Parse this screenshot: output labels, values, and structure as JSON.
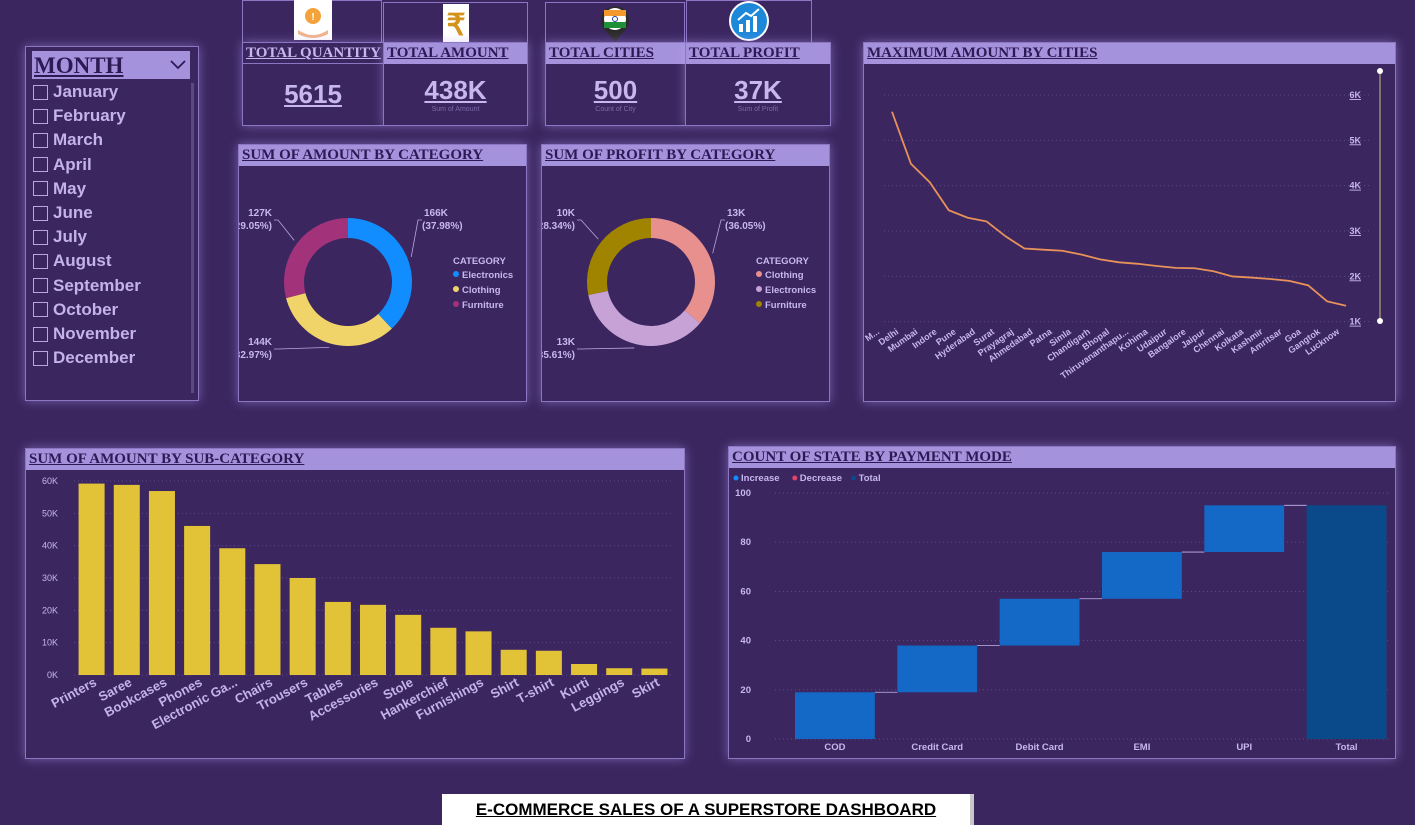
{
  "month_slicer": {
    "title": "MONTH",
    "items": [
      "January",
      "February",
      "March",
      "April",
      "May",
      "June",
      "July",
      "August",
      "September",
      "October",
      "November",
      "December"
    ]
  },
  "kpis": {
    "quantity": {
      "label": "TOTAL QUANTITY",
      "value": "5615",
      "icon": "hand-coin-icon"
    },
    "amount": {
      "label": "TOTAL AMOUNT",
      "value": "438K",
      "sub": "Sum of Amount",
      "icon": "rupee-icon"
    },
    "cities": {
      "label": "TOTAL CITIES",
      "value": "500",
      "sub": "Count of City",
      "icon": "india-map-pin-icon"
    },
    "profit": {
      "label": "TOTAL PROFIT",
      "value": "37K",
      "sub": "Sum of Profit",
      "icon": "growth-chart-icon"
    }
  },
  "footer": {
    "title": "E-COMMERCE SALES OF A SUPERSTORE DASHBOARD"
  },
  "colors": {
    "background": "#3b2660",
    "header": "#a592dc",
    "bar_yellow": "#e2c236",
    "line_orange": "#e8925a",
    "increase_blue": "#1569c6",
    "total_navy": "#0b4a8a"
  },
  "chart_data": [
    {
      "id": "amount_by_category",
      "type": "pie",
      "title": "SUM OF AMOUNT BY CATEGORY",
      "legend_title": "CATEGORY",
      "legend_position": "right",
      "slices": [
        {
          "label": "Electronics",
          "value": 166,
          "display": "166K",
          "pct": "(37.98%)",
          "color": "#118dff"
        },
        {
          "label": "Clothing",
          "value": 144,
          "display": "144K",
          "pct": "(32.97%)",
          "color": "#f0d46a"
        },
        {
          "label": "Furniture",
          "value": 127,
          "display": "127K",
          "pct": "(29.05%)",
          "color": "#a2337a"
        }
      ]
    },
    {
      "id": "profit_by_category",
      "type": "pie",
      "title": "SUM OF PROFIT BY CATEGORY",
      "legend_title": "CATEGORY",
      "legend_position": "right",
      "slices": [
        {
          "label": "Clothing",
          "value": 13.3,
          "display": "13K",
          "pct": "(36.05%)",
          "color": "#e8908e"
        },
        {
          "label": "Electronics",
          "value": 13.1,
          "display": "13K",
          "pct": "(35.61%)",
          "color": "#c7a2d6"
        },
        {
          "label": "Furniture",
          "value": 10.4,
          "display": "10K",
          "pct": "(28.34%)",
          "color": "#a08400"
        }
      ]
    },
    {
      "id": "max_amount_by_cities",
      "type": "line",
      "title": "MAXIMUM AMOUNT BY CITIES",
      "categories": [
        "M...",
        "Delhi",
        "Mumbai",
        "Indore",
        "Pune",
        "Hyderabad",
        "Surat",
        "Prayagraj",
        "Ahmedabad",
        "Patna",
        "Simla",
        "Chandigarh",
        "Bhopal",
        "Thiruvananthapu...",
        "Kohima",
        "Udaipur",
        "Bangalore",
        "Jaipur",
        "Chennai",
        "Kolkata",
        "Kashmir",
        "Amritsar",
        "Goa",
        "Gangtok",
        "Lucknow"
      ],
      "values": [
        5800,
        4400,
        3900,
        3150,
        2950,
        2850,
        2450,
        2120,
        2090,
        2060,
        1960,
        1830,
        1750,
        1710,
        1650,
        1600,
        1590,
        1510,
        1370,
        1340,
        1300,
        1250,
        1130,
        700,
        580
      ],
      "yticks": [
        "1K",
        "2K",
        "3K",
        "4K",
        "5K",
        "6K"
      ],
      "ylim": [
        0,
        6000
      ],
      "y_axis_position": "right",
      "grid": true
    },
    {
      "id": "amount_by_subcategory",
      "type": "bar",
      "title": "SUM OF AMOUNT BY SUB-CATEGORY",
      "categories": [
        "Printers",
        "Saree",
        "Bookcases",
        "Phones",
        "Electronic Ga...",
        "Chairs",
        "Trousers",
        "Tables",
        "Accessories",
        "Stole",
        "Hankerchief",
        "Furnishings",
        "Shirt",
        "T-shirt",
        "Kurti",
        "Leggings",
        "Skirt"
      ],
      "values": [
        59200,
        58800,
        56900,
        46100,
        39200,
        34300,
        30000,
        22600,
        21700,
        18600,
        14600,
        13500,
        7800,
        7500,
        3400,
        2100,
        2000
      ],
      "yticks": [
        "0K",
        "10K",
        "20K",
        "30K",
        "40K",
        "50K",
        "60K"
      ],
      "ylim": [
        0,
        60000
      ],
      "grid": true
    },
    {
      "id": "state_by_payment_mode",
      "type": "bar",
      "subtype": "waterfall",
      "title": "COUNT OF STATE BY PAYMENT MODE",
      "legend": [
        "Increase",
        "Decrease",
        "Total"
      ],
      "legend_colors": [
        "#118dff",
        "#e0446a",
        "#0b4a8a"
      ],
      "legend_position": "top-left",
      "categories": [
        "COD",
        "Credit Card",
        "Debit Card",
        "EMI",
        "UPI",
        "Total"
      ],
      "values": [
        19,
        19,
        19,
        19,
        19,
        95
      ],
      "cumulative": [
        19,
        38,
        57,
        76,
        95,
        95
      ],
      "yticks": [
        "0",
        "20",
        "40",
        "60",
        "80",
        "100"
      ],
      "ylim": [
        0,
        100
      ],
      "grid": true
    }
  ]
}
